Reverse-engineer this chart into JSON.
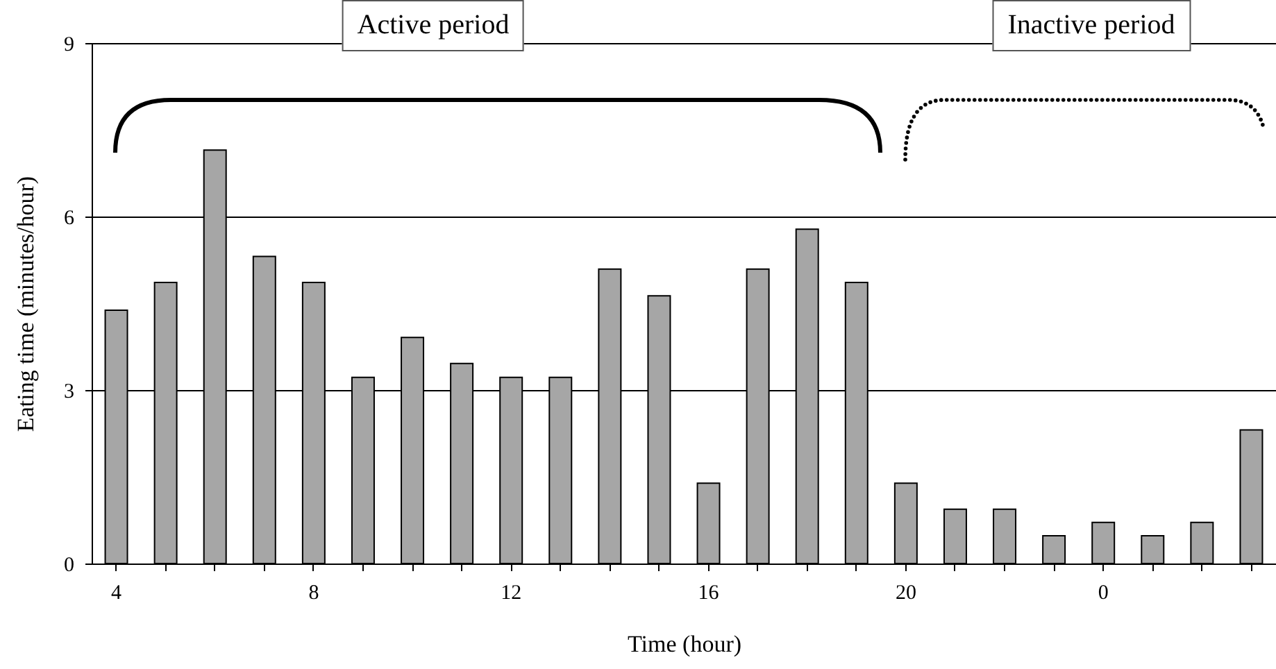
{
  "chart_data": {
    "type": "bar",
    "xlabel": "Time (hour)",
    "ylabel": "Eating time (minutes/hour)",
    "categories": [
      "4",
      null,
      null,
      null,
      "8",
      null,
      null,
      null,
      "12",
      null,
      null,
      null,
      "16",
      null,
      null,
      null,
      "20",
      null,
      null,
      null,
      "0",
      null,
      null,
      null
    ],
    "values": [
      4.38,
      4.86,
      7.15,
      5.31,
      4.86,
      3.22,
      3.91,
      3.46,
      3.22,
      3.22,
      5.09,
      4.63,
      1.39,
      5.09,
      5.78,
      4.86,
      1.39,
      0.94,
      0.94,
      0.48,
      0.71,
      0.48,
      0.71,
      2.31
    ],
    "color": "#a6a6a6",
    "ylim": [
      0,
      9
    ],
    "yticks": [
      0,
      3,
      6,
      9
    ],
    "grid": "y",
    "annotations": [
      "Active period",
      "Inactive period"
    ]
  }
}
